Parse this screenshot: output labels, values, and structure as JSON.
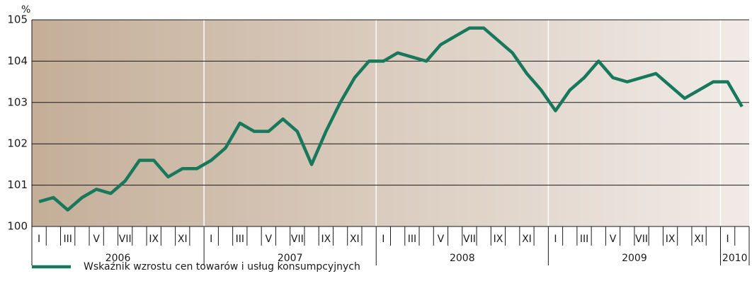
{
  "chart_data": {
    "type": "line",
    "y_unit": "%",
    "categories": [
      "I",
      null,
      "III",
      null,
      "V",
      null,
      "VII",
      null,
      "IX",
      null,
      "XI",
      null,
      "I",
      null,
      "III",
      null,
      "V",
      null,
      "VII",
      null,
      "IX",
      null,
      "XI",
      null,
      "I",
      null,
      "III",
      null,
      "V",
      null,
      "VII",
      null,
      "IX",
      null,
      "XI",
      null,
      "I",
      null,
      "III",
      null,
      "V",
      null,
      "VII",
      null,
      "IX",
      null,
      "XI",
      null,
      "I",
      null
    ],
    "years": [
      "2006",
      "2007",
      "2008",
      "2009",
      "2010"
    ],
    "series": [
      {
        "name": "Wskaźnik wzrostu cen towarów i usług konsumpcyjnych",
        "color": "#17785c",
        "values": [
          100.6,
          100.7,
          100.4,
          100.7,
          100.9,
          100.8,
          101.1,
          101.6,
          101.6,
          101.2,
          101.4,
          101.4,
          101.6,
          101.9,
          102.5,
          102.3,
          102.3,
          102.6,
          102.3,
          101.5,
          102.3,
          103.0,
          103.6,
          104.0,
          104.0,
          104.2,
          104.1,
          104.0,
          104.4,
          104.6,
          104.8,
          104.8,
          104.5,
          104.2,
          103.7,
          103.3,
          102.8,
          103.3,
          103.6,
          104.0,
          103.6,
          103.5,
          103.6,
          103.7,
          103.4,
          103.1,
          103.3,
          103.5,
          103.5,
          102.9
        ]
      }
    ],
    "ylim": [
      100,
      105
    ],
    "yticks": [
      100,
      101,
      102,
      103,
      104,
      105
    ],
    "grid": true
  }
}
